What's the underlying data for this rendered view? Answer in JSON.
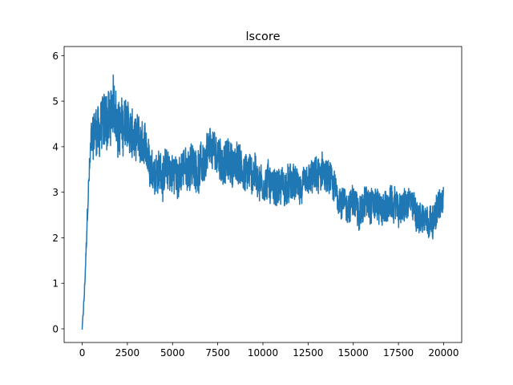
{
  "chart_data": {
    "type": "line",
    "title": "lscore",
    "xlabel": "",
    "ylabel": "",
    "xlim": [
      -1000,
      21000
    ],
    "ylim": [
      -0.3,
      6.2
    ],
    "x_ticks": [
      0,
      2500,
      5000,
      7500,
      10000,
      12500,
      15000,
      17500,
      20000
    ],
    "y_ticks": [
      0,
      1,
      2,
      3,
      4,
      5,
      6
    ],
    "grid": false,
    "line_color": "#1f77b4",
    "series": [
      {
        "x": [
          0,
          100,
          200,
          300,
          400,
          500,
          700,
          1000,
          1300,
          1600,
          2000,
          2500,
          3000,
          3500,
          4000,
          4500,
          5000,
          5500,
          6000,
          6500,
          7000,
          7500,
          8000,
          8500,
          9000,
          9500,
          10000,
          10500,
          11000,
          11500,
          12000,
          12500,
          13000,
          13500,
          14000,
          14500,
          15000,
          15500,
          16000,
          16500,
          17000,
          17500,
          18000,
          18500,
          19000,
          19500,
          20000
        ],
        "y": [
          0.0,
          0.6,
          1.5,
          2.6,
          3.4,
          4.1,
          4.4,
          4.5,
          4.6,
          4.7,
          4.6,
          4.4,
          4.0,
          3.7,
          3.6,
          3.5,
          3.4,
          3.45,
          3.55,
          3.6,
          3.7,
          3.7,
          3.65,
          3.6,
          3.5,
          3.45,
          3.3,
          3.25,
          3.2,
          3.1,
          3.05,
          3.0,
          3.2,
          3.3,
          2.9,
          2.8,
          2.7,
          2.75,
          3.0,
          2.75,
          2.7,
          2.65,
          2.65,
          2.55,
          2.5,
          2.65,
          2.75
        ],
        "noise_amplitude": [
          0.05,
          0.1,
          0.15,
          0.2,
          0.3,
          0.4,
          0.55,
          0.6,
          0.65,
          0.65,
          0.6,
          0.55,
          0.5,
          0.45,
          0.45,
          0.45,
          0.45,
          0.45,
          0.45,
          0.45,
          0.45,
          0.45,
          0.45,
          0.45,
          0.45,
          0.45,
          0.4,
          0.4,
          0.4,
          0.4,
          0.35,
          0.35,
          0.4,
          0.4,
          0.35,
          0.35,
          0.35,
          0.35,
          0.4,
          0.35,
          0.35,
          0.35,
          0.35,
          0.35,
          0.35,
          0.35,
          0.35
        ]
      }
    ]
  }
}
